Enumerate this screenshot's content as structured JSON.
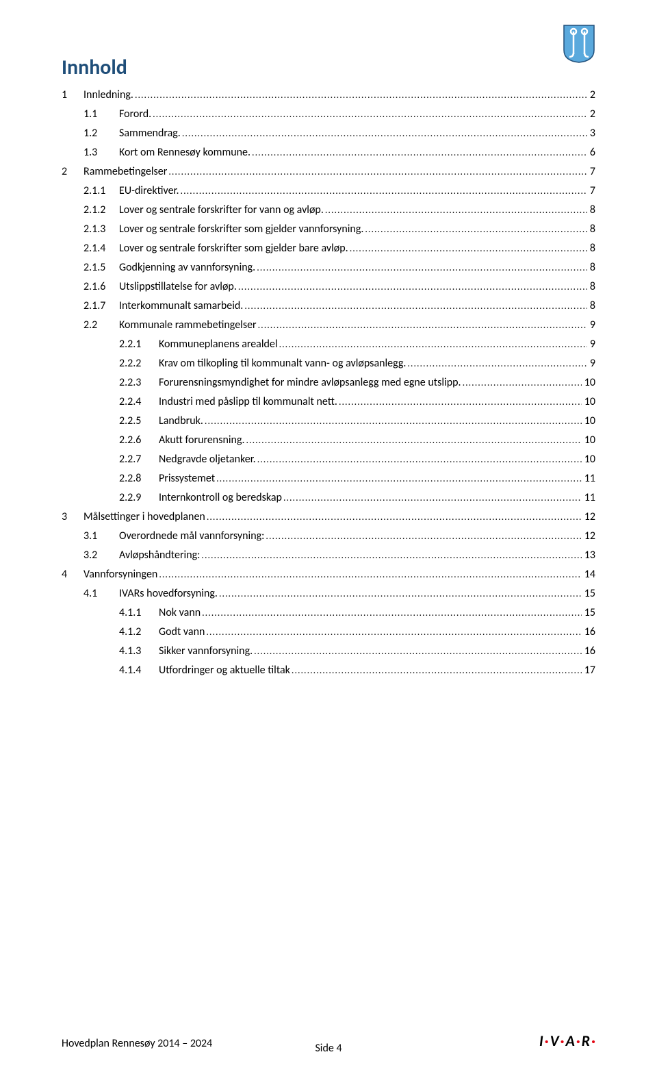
{
  "title": "Innhold",
  "title_color": "#1f4e79",
  "text_color": "#000000",
  "logo": {
    "fill": "#5aa9dd",
    "stroke": "#1f4e79"
  },
  "toc": [
    {
      "level": 0,
      "num": "1",
      "label": "Innledning.",
      "page": "2"
    },
    {
      "level": 1,
      "num": "1.1",
      "label": "Forord.",
      "page": "2"
    },
    {
      "level": 1,
      "num": "1.2",
      "label": "Sammendrag.",
      "page": "3"
    },
    {
      "level": 1,
      "num": "1.3",
      "label": "Kort om Rennesøy kommune.",
      "page": "6"
    },
    {
      "level": 0,
      "num": "2",
      "label": "Rammebetingelser",
      "page": "7"
    },
    {
      "level": 1,
      "num": "2.1.1",
      "label": "EU-direktiver.",
      "page": "7"
    },
    {
      "level": 1,
      "num": "2.1.2",
      "label": "Lover og sentrale forskrifter for vann og avløp.",
      "page": "8"
    },
    {
      "level": 1,
      "num": "2.1.3",
      "label": "Lover og sentrale forskrifter som gjelder vannforsyning.",
      "page": "8"
    },
    {
      "level": 1,
      "num": "2.1.4",
      "label": "Lover og sentrale forskrifter som gjelder bare avløp.",
      "page": "8"
    },
    {
      "level": 1,
      "num": "2.1.5",
      "label": "Godkjenning av vannforsyning.",
      "page": "8"
    },
    {
      "level": 1,
      "num": "2.1.6",
      "label": "Utslippstillatelse for avløp.",
      "page": "8"
    },
    {
      "level": 1,
      "num": "2.1.7",
      "label": "Interkommunalt samarbeid.",
      "page": "8"
    },
    {
      "level": 1,
      "num": "2.2",
      "label": "Kommunale rammebetingelser",
      "page": "9"
    },
    {
      "level": 2,
      "num": "2.2.1",
      "label": "Kommuneplanens arealdel",
      "page": "9"
    },
    {
      "level": 2,
      "num": "2.2.2",
      "label": "Krav om tilkopling til kommunalt vann- og avløpsanlegg.",
      "page": "9"
    },
    {
      "level": 2,
      "num": "2.2.3",
      "label": "Forurensningsmyndighet for mindre avløpsanlegg med egne utslipp.",
      "page": "10"
    },
    {
      "level": 2,
      "num": "2.2.4",
      "label": "Industri med påslipp til kommunalt nett.",
      "page": "10"
    },
    {
      "level": 2,
      "num": "2.2.5",
      "label": "Landbruk.",
      "page": "10"
    },
    {
      "level": 2,
      "num": "2.2.6",
      "label": "Akutt forurensning.",
      "page": "10"
    },
    {
      "level": 2,
      "num": "2.2.7",
      "label": "Nedgravde oljetanker.",
      "page": "10"
    },
    {
      "level": 2,
      "num": "2.2.8",
      "label": "Prissystemet",
      "page": "11"
    },
    {
      "level": 2,
      "num": "2.2.9",
      "label": "Internkontroll og beredskap",
      "page": "11"
    },
    {
      "level": 0,
      "num": "3",
      "label": "Målsettinger i hovedplanen",
      "page": "12"
    },
    {
      "level": 1,
      "num": "3.1",
      "label": "Overordnede mål vannforsyning:",
      "page": "12"
    },
    {
      "level": 1,
      "num": "3.2",
      "label": "Avløpshåndtering:",
      "page": "13"
    },
    {
      "level": 0,
      "num": "4",
      "label": "Vannforsyningen",
      "page": "14"
    },
    {
      "level": 1,
      "num": "4.1",
      "label": "IVARs hovedforsyning.",
      "page": "15"
    },
    {
      "level": 2,
      "num": "4.1.1",
      "label": "Nok vann",
      "page": "15"
    },
    {
      "level": 2,
      "num": "4.1.2",
      "label": "Godt vann",
      "page": "16"
    },
    {
      "level": 2,
      "num": "4.1.3",
      "label": "Sikker vannforsyning.",
      "page": "16"
    },
    {
      "level": 2,
      "num": "4.1.4",
      "label": "Utfordringer og aktuelle tiltak",
      "page": "17"
    }
  ],
  "footer": {
    "left": "Hovedplan Rennesøy 2014 – 2024",
    "center": "Side 4",
    "ivar": {
      "text": "I V A R",
      "colors": {
        "letter": "#000000",
        "dot": "#e30613"
      }
    }
  }
}
